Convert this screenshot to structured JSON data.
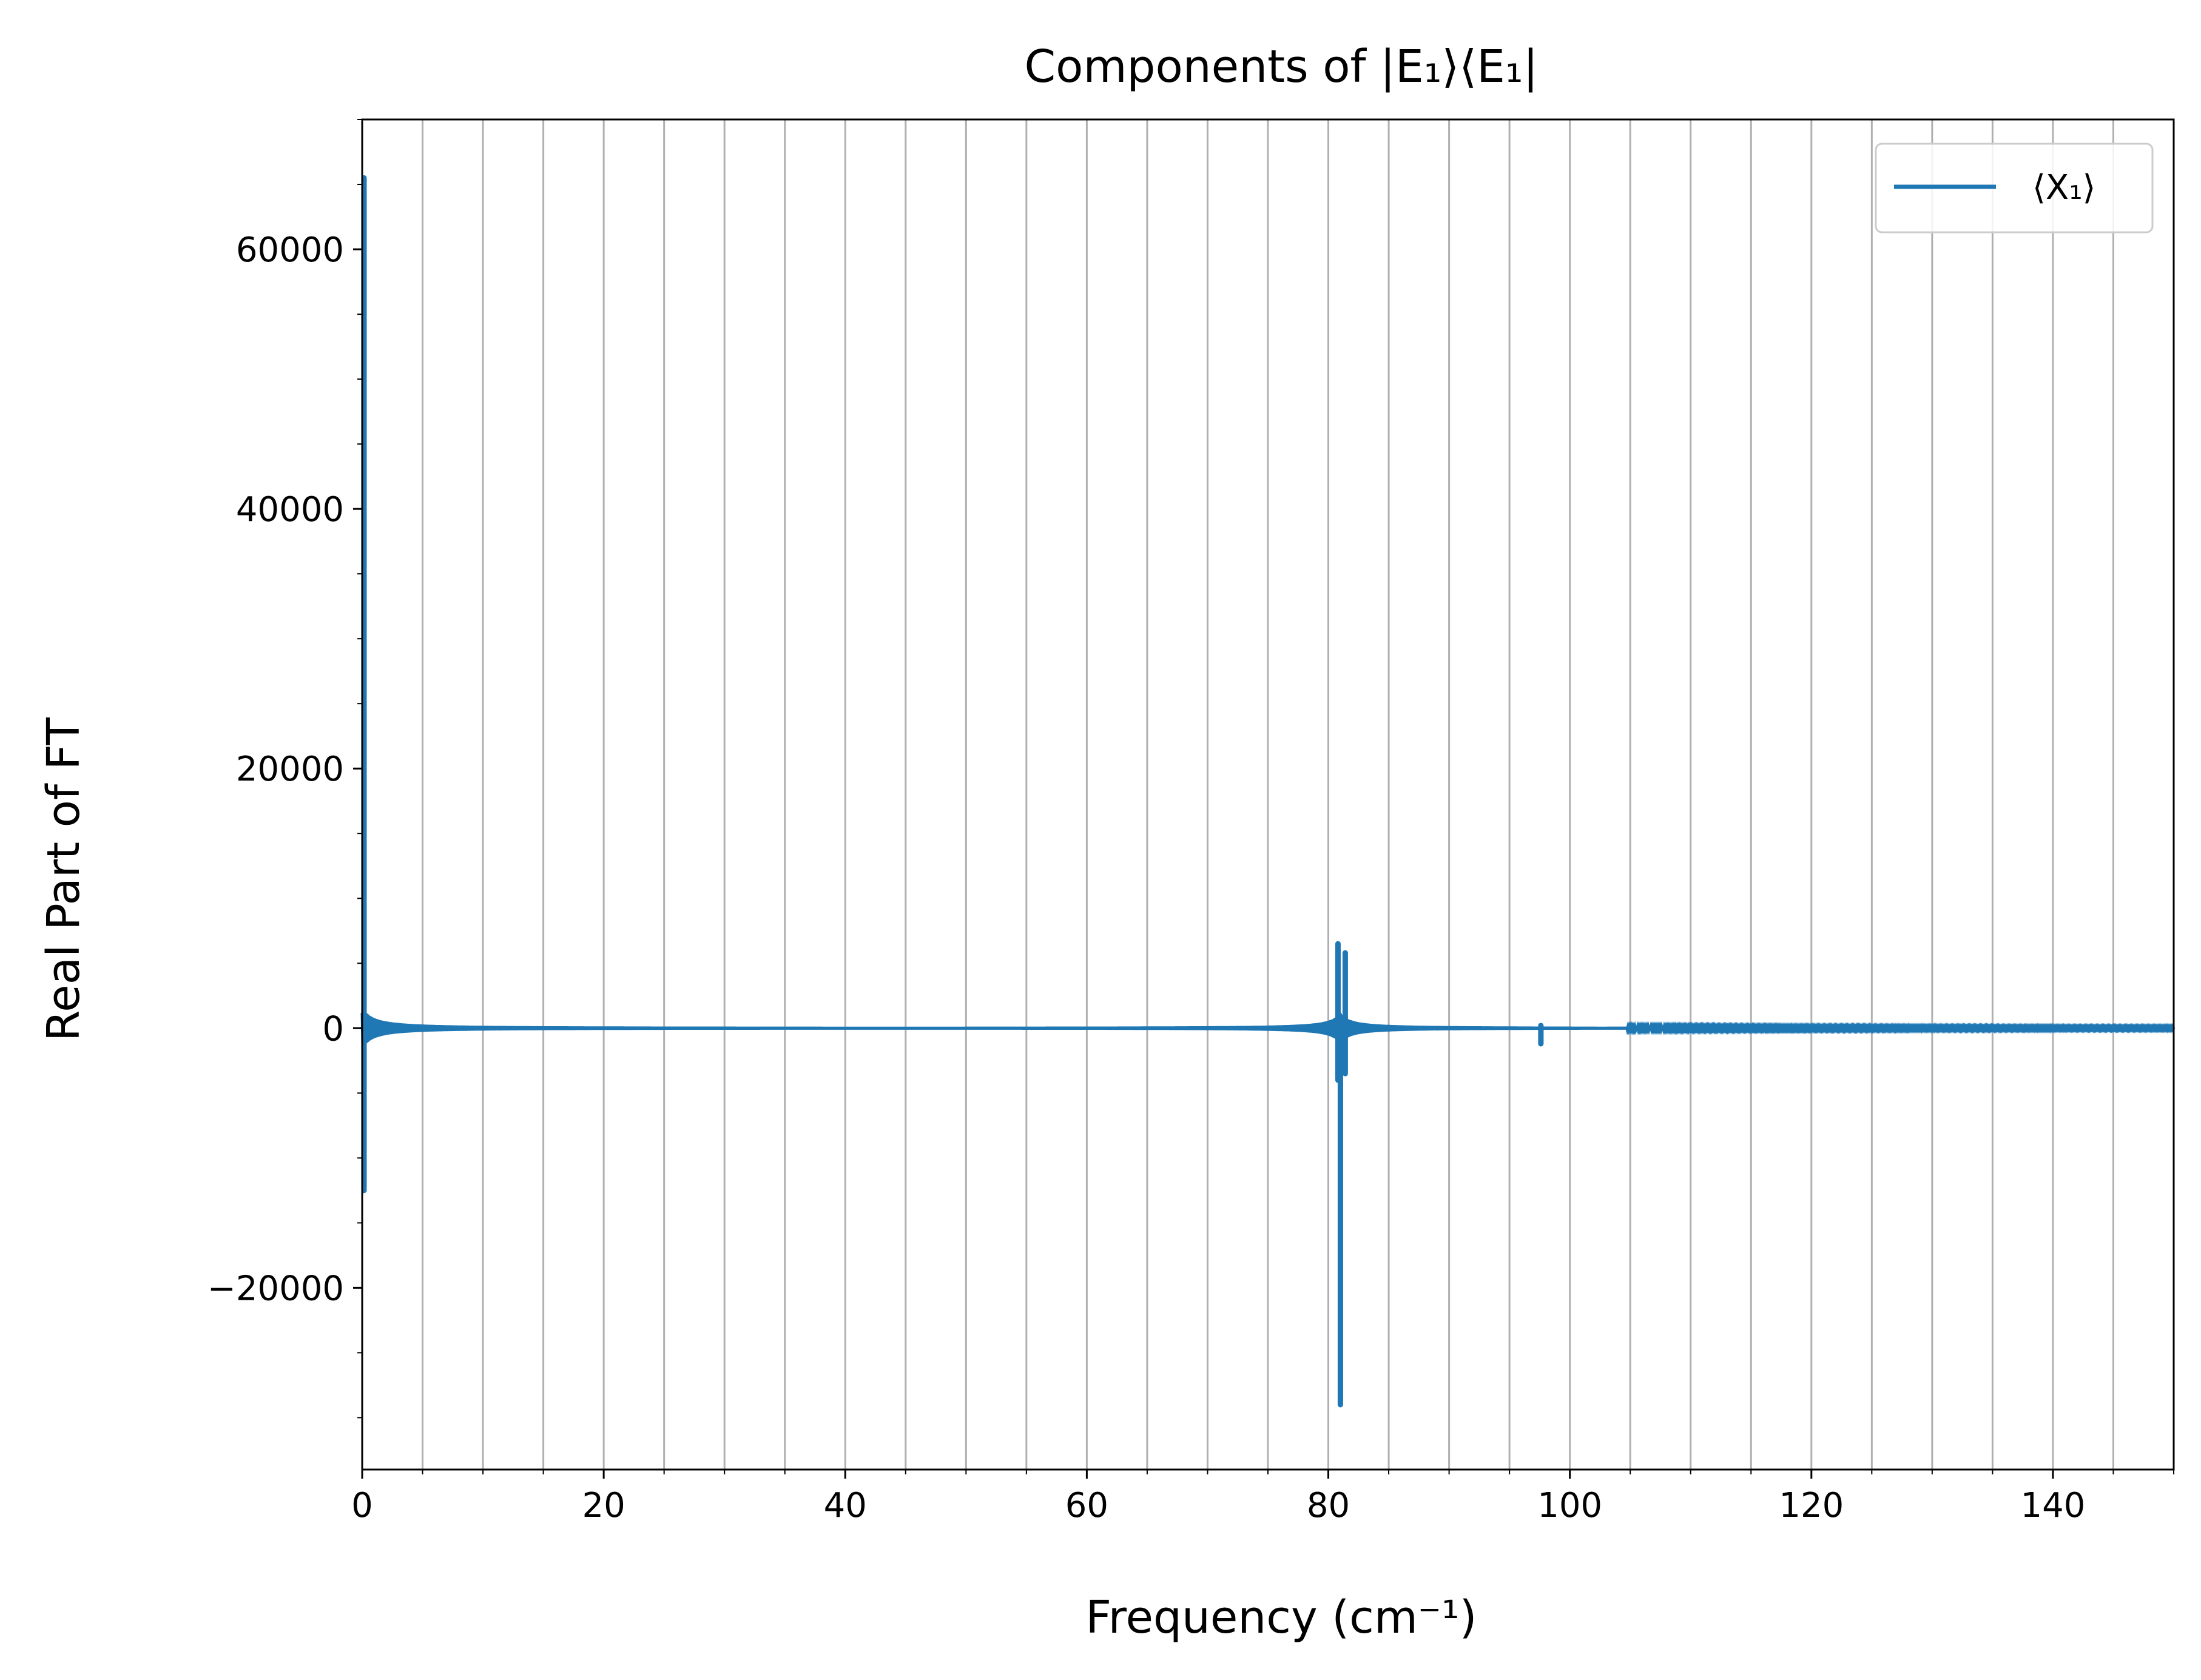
{
  "chart_data": {
    "type": "line",
    "title": "Components of |E₁⟩⟨E₁|",
    "xlabel": "Frequency (cm⁻¹)",
    "ylabel": "Real Part of FT",
    "xlim": [
      0,
      150
    ],
    "ylim": [
      -34000,
      70000
    ],
    "x_ticks": [
      0,
      20,
      40,
      60,
      80,
      100,
      120,
      140
    ],
    "x_tick_labels": [
      "0",
      "20",
      "40",
      "60",
      "80",
      "100",
      "120",
      "140"
    ],
    "y_ticks": [
      -20000,
      0,
      20000,
      40000,
      60000
    ],
    "y_tick_labels": [
      "−20000",
      "0",
      "20000",
      "40000",
      "60000"
    ],
    "x_minor_step": 5,
    "y_minor_step": 5000,
    "grid": "vertical lines every 5 cm⁻¹",
    "legend_position": "upper right",
    "series": [
      {
        "name": "⟨X₁⟩",
        "color": "#1f77b4",
        "peaks": [
          {
            "x": 0.15,
            "max": 65500,
            "min": -12500
          },
          {
            "x": 80.8,
            "max": 6500,
            "min": -4000
          },
          {
            "x": 81.0,
            "max": 0,
            "min": -29000
          },
          {
            "x": 81.4,
            "max": 5800,
            "min": -3500
          },
          {
            "x": 97.6,
            "max": 200,
            "min": -1200
          }
        ]
      }
    ]
  }
}
